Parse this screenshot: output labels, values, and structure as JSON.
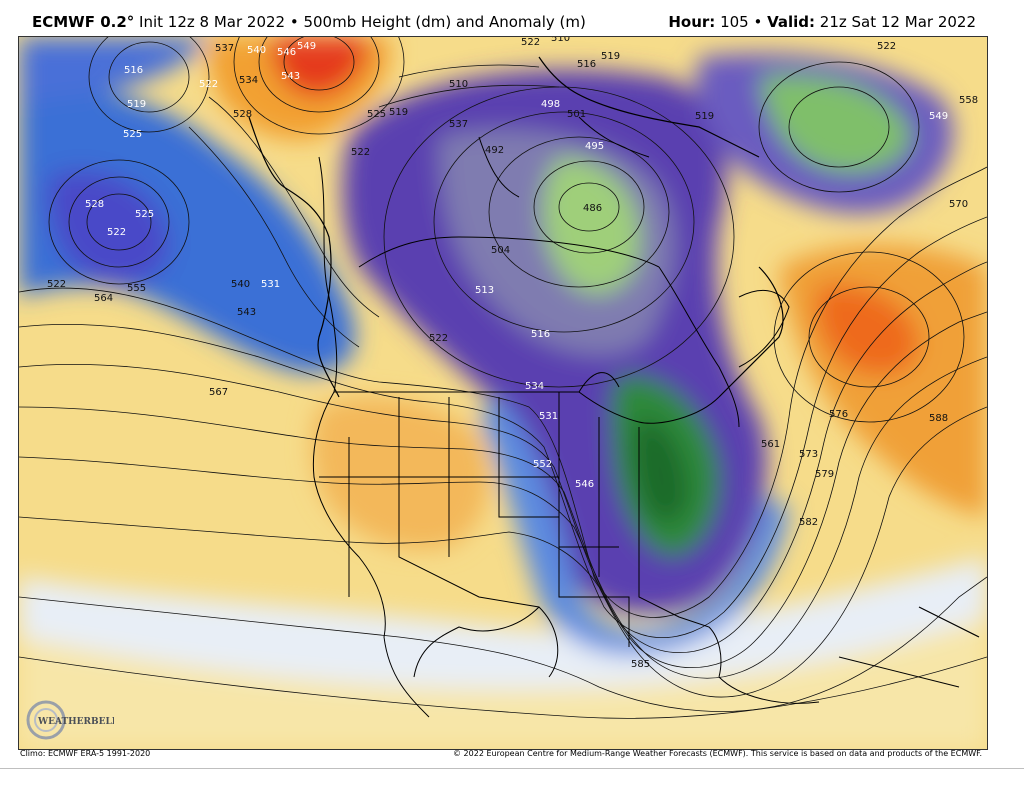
{
  "header": {
    "model": "ECMWF 0.2",
    "degree_mark": "°",
    "init_text": " Init 12z 8 Mar 2022 • 500mb Height (dm) and Anomaly (m)",
    "hour_label": "Hour:",
    "hour_value": " 105 • ",
    "valid_label": "Valid:",
    "valid_value": " 21z Sat 12 Mar 2022"
  },
  "footer": {
    "climo": "Climo: ECMWF ERA-5 1991-2020",
    "copyright": "© 2022 European Centre for Medium-Range Weather Forecasts (ECMWF). This service is based on data and products of the ECMWF."
  },
  "logo": {
    "text": "WEATHERBELL"
  },
  "contour_labels": [
    "549",
    "540",
    "546",
    "543",
    "537",
    "534",
    "528",
    "516",
    "519",
    "525",
    "522",
    "522",
    "528",
    "525",
    "522",
    "531",
    "540",
    "543",
    "555",
    "564",
    "567",
    "525",
    "519",
    "510",
    "522",
    "498",
    "501",
    "495",
    "492",
    "486",
    "504",
    "513",
    "516",
    "522",
    "519",
    "516",
    "519",
    "522",
    "549",
    "558",
    "570",
    "576",
    "573",
    "579",
    "582",
    "588",
    "561",
    "585",
    "546",
    "552",
    "534",
    "531",
    "510",
    "522",
    "537"
  ]
}
